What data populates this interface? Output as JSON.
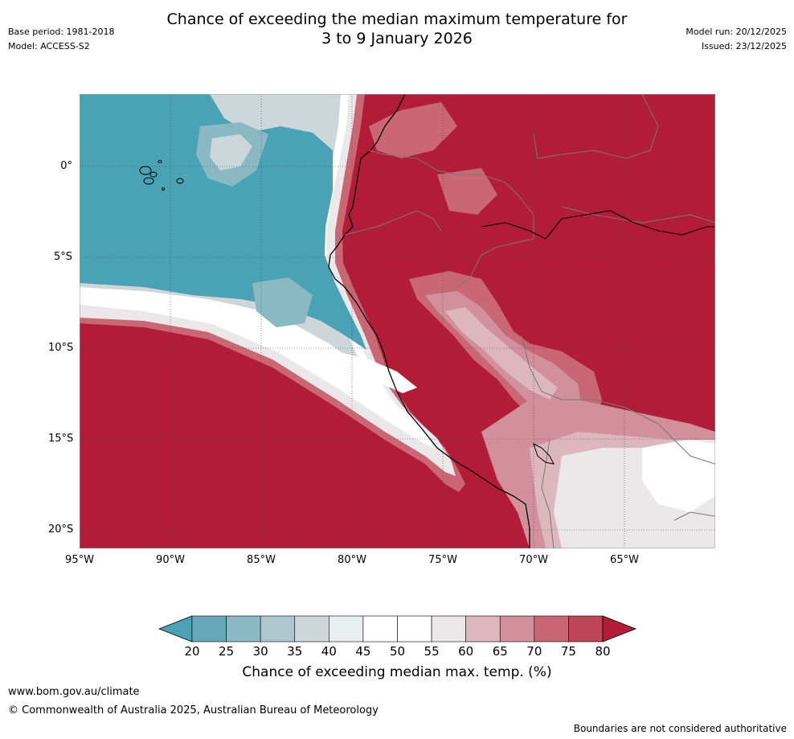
{
  "header": {
    "title_line1": "Chance of exceeding the median maximum temperature for",
    "title_line2": "3 to 9 January 2026",
    "base_period": "Base period: 1981-2018",
    "model": "Model: ACCESS-S2",
    "model_run": "Model run: 20/12/2025",
    "issued": "Issued: 23/12/2025"
  },
  "map": {
    "lat_labels": [
      "0°",
      "5°S",
      "10°S",
      "15°S",
      "20°S"
    ],
    "lon_labels": [
      "95°W",
      "90°W",
      "85°W",
      "80°W",
      "75°W",
      "70°W",
      "65°W"
    ],
    "region": "Tropical eastern Pacific and western South America"
  },
  "colorbar": {
    "title": "Chance of exceeding median max. temp. (%)",
    "ticks": [
      "20",
      "25",
      "30",
      "35",
      "40",
      "45",
      "50",
      "55",
      "60",
      "65",
      "70",
      "75",
      "80"
    ],
    "below_color": "#4aa3b5",
    "above_color": "#b21c37",
    "bin_colors": [
      "#68a9b8",
      "#8ab9c4",
      "#acc7cd",
      "#cdd7da",
      "#e8edef",
      "#ffffff",
      "#ffffff",
      "#ebe8e9",
      "#ddb7be",
      "#d1909b",
      "#c96874",
      "#be4555"
    ]
  },
  "footer": {
    "website": "www.bom.gov.au/climate",
    "copyright": "© Commonwealth of Australia 2025, Australian Bureau of Meteorology",
    "disclaimer": "Boundaries are not considered authoritative"
  }
}
